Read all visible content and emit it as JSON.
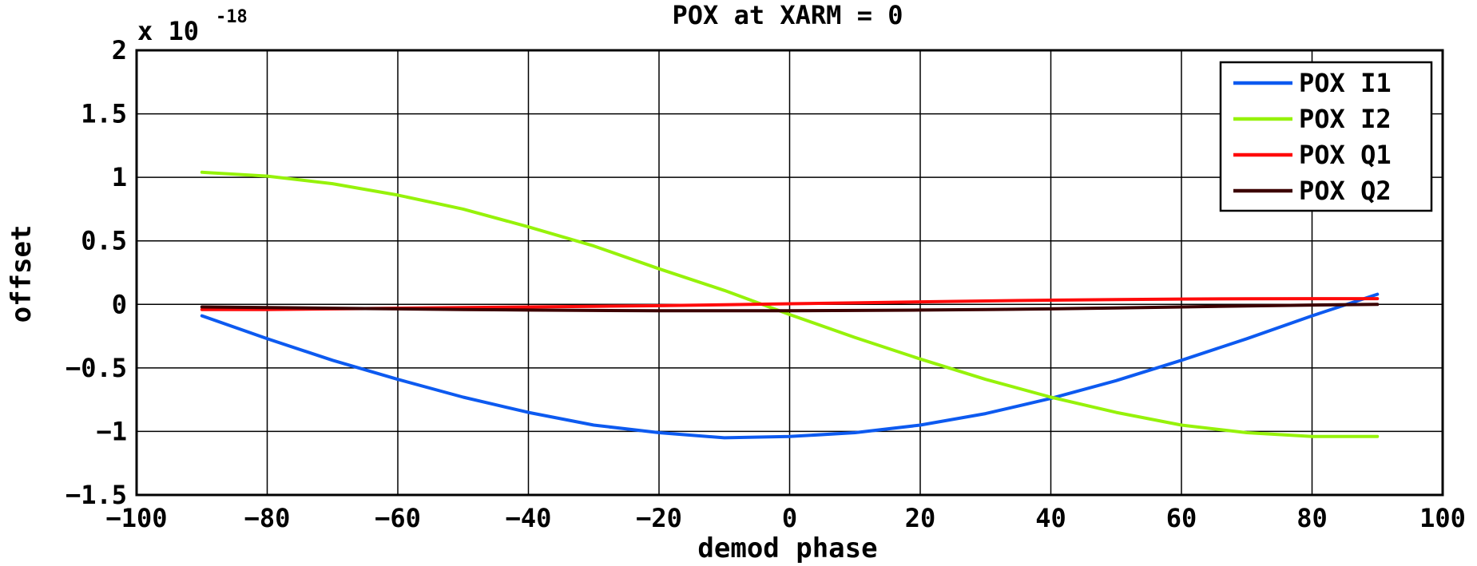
{
  "chart_data": {
    "type": "line",
    "title": "POX at XARM = 0",
    "xlabel": "demod phase",
    "ylabel": "offset",
    "y_multiplier": {
      "base": "x 10",
      "exponent": "-18"
    },
    "xlim": [
      -100,
      100
    ],
    "ylim": [
      -1.5,
      2
    ],
    "xticks": [
      -100,
      -80,
      -60,
      -40,
      -20,
      0,
      20,
      40,
      60,
      80,
      100
    ],
    "yticks": [
      -1.5,
      -1,
      -0.5,
      0,
      0.5,
      1,
      1.5,
      2
    ],
    "xtick_labels": [
      "−100",
      "−80",
      "−60",
      "−40",
      "−20",
      "0",
      "20",
      "40",
      "60",
      "80",
      "100"
    ],
    "ytick_labels": [
      "−1.5",
      "−1",
      "−0.5",
      "0",
      "0.5",
      "1",
      "1.5",
      "2"
    ],
    "grid": true,
    "legend_position": "top-right",
    "x": [
      -90,
      -80,
      -70,
      -60,
      -50,
      -40,
      -30,
      -20,
      -10,
      0,
      10,
      20,
      30,
      40,
      50,
      60,
      70,
      80,
      90
    ],
    "series": [
      {
        "name": "POX I1",
        "color": "#0d5af0",
        "values": [
          -0.09,
          -0.27,
          -0.44,
          -0.59,
          -0.73,
          -0.85,
          -0.95,
          -1.01,
          -1.05,
          -1.04,
          -1.01,
          -0.95,
          -0.86,
          -0.74,
          -0.6,
          -0.44,
          -0.27,
          -0.09,
          0.08
        ]
      },
      {
        "name": "POX I2",
        "color": "#96f20a",
        "values": [
          1.04,
          1.01,
          0.95,
          0.86,
          0.75,
          0.61,
          0.46,
          0.28,
          0.11,
          -0.08,
          -0.26,
          -0.43,
          -0.59,
          -0.73,
          -0.85,
          -0.95,
          -1.01,
          -1.04,
          -1.04
        ]
      },
      {
        "name": "POX Q1",
        "color": "#ff0a0a",
        "values": [
          -0.04,
          -0.04,
          -0.035,
          -0.03,
          -0.025,
          -0.02,
          -0.015,
          -0.01,
          -0.003,
          0.005,
          0.012,
          0.02,
          0.027,
          0.033,
          0.038,
          0.042,
          0.044,
          0.045,
          0.045
        ]
      },
      {
        "name": "POX Q2",
        "color": "#3c0000",
        "values": [
          -0.02,
          -0.025,
          -0.03,
          -0.035,
          -0.04,
          -0.045,
          -0.048,
          -0.05,
          -0.05,
          -0.05,
          -0.048,
          -0.045,
          -0.04,
          -0.035,
          -0.028,
          -0.02,
          -0.012,
          -0.005,
          0.0
        ]
      }
    ]
  }
}
